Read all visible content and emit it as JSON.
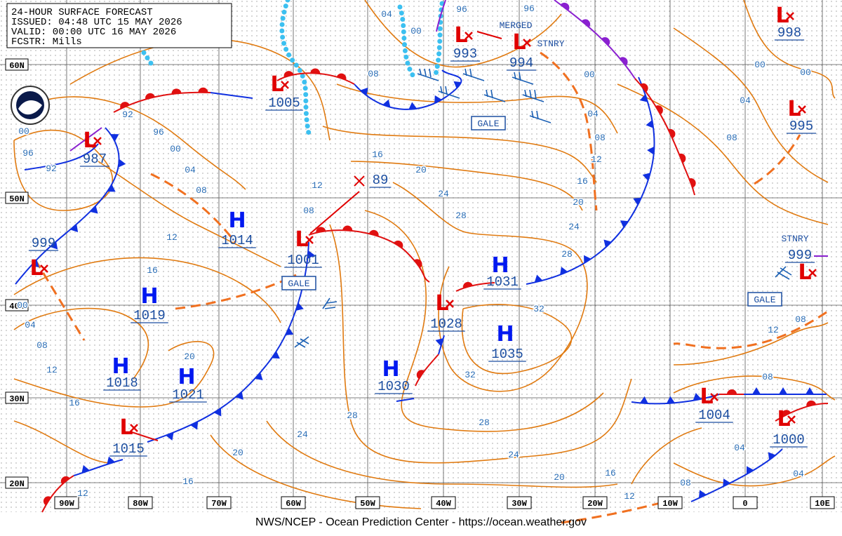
{
  "header": {
    "title": "24-HOUR SURFACE FORECAST",
    "issued": "ISSUED: 04:48 UTC 15 MAY 2026",
    "valid": "VALID: 00:00 UTC 16 MAY 2026",
    "forecaster": "FCSTR: Mills"
  },
  "latitude_labels": [
    "60N",
    "50N",
    "40N",
    "30N",
    "20N"
  ],
  "longitude_labels": [
    "90W",
    "80W",
    "70W",
    "60W",
    "50W",
    "40W",
    "30W",
    "20W",
    "10W",
    "0",
    "10E"
  ],
  "pressure_centers": [
    {
      "symbol": "L",
      "pressure": "987"
    },
    {
      "symbol": "L",
      "pressure": "1005"
    },
    {
      "symbol": "L",
      "pressure": "993"
    },
    {
      "symbol": "L",
      "pressure": "994"
    },
    {
      "symbol": "L",
      "pressure": "998"
    },
    {
      "symbol": "L",
      "pressure": "995"
    },
    {
      "symbol": "L",
      "pressure": "999"
    },
    {
      "symbol": "H",
      "pressure": "1014"
    },
    {
      "symbol": "L",
      "pressure": "1001"
    },
    {
      "pressure": "89"
    },
    {
      "symbol": "H",
      "pressure": "1019"
    },
    {
      "symbol": "H",
      "pressure": "1031"
    },
    {
      "symbol": "L",
      "pressure": "1028"
    },
    {
      "symbol": "H",
      "pressure": "1035"
    },
    {
      "symbol": "H",
      "pressure": "1018"
    },
    {
      "symbol": "H",
      "pressure": "1021"
    },
    {
      "symbol": "H",
      "pressure": "1030"
    },
    {
      "symbol": "L",
      "pressure": "1004"
    },
    {
      "symbol": "L",
      "pressure": "1000"
    },
    {
      "symbol": "L",
      "pressure": "1015"
    },
    {
      "symbol": "L",
      "pressure": "999"
    }
  ],
  "annotations": [
    "MERGED",
    "STNRY",
    "STNRY",
    "GALE",
    "GALE",
    "GALE"
  ],
  "isobar_labels": [
    "04",
    "00",
    "96",
    "96",
    "08",
    "00",
    "04",
    "08",
    "12",
    "16",
    "20",
    "24",
    "28",
    "32",
    "32",
    "28",
    "24",
    "20",
    "16",
    "12",
    "08",
    "04",
    "04",
    "08",
    "12",
    "08",
    "04",
    "08",
    "00",
    "00",
    "16",
    "20",
    "24",
    "28",
    "12",
    "08",
    "04",
    "08",
    "00",
    "96",
    "92",
    "92",
    "96",
    "00",
    "12",
    "16",
    "00",
    "04",
    "08",
    "12",
    "16",
    "20",
    "24",
    "28",
    "20",
    "16",
    "12"
  ],
  "footer": "NWS/NCEP - Ocean Prediction Center - https://ocean.weather.gov"
}
